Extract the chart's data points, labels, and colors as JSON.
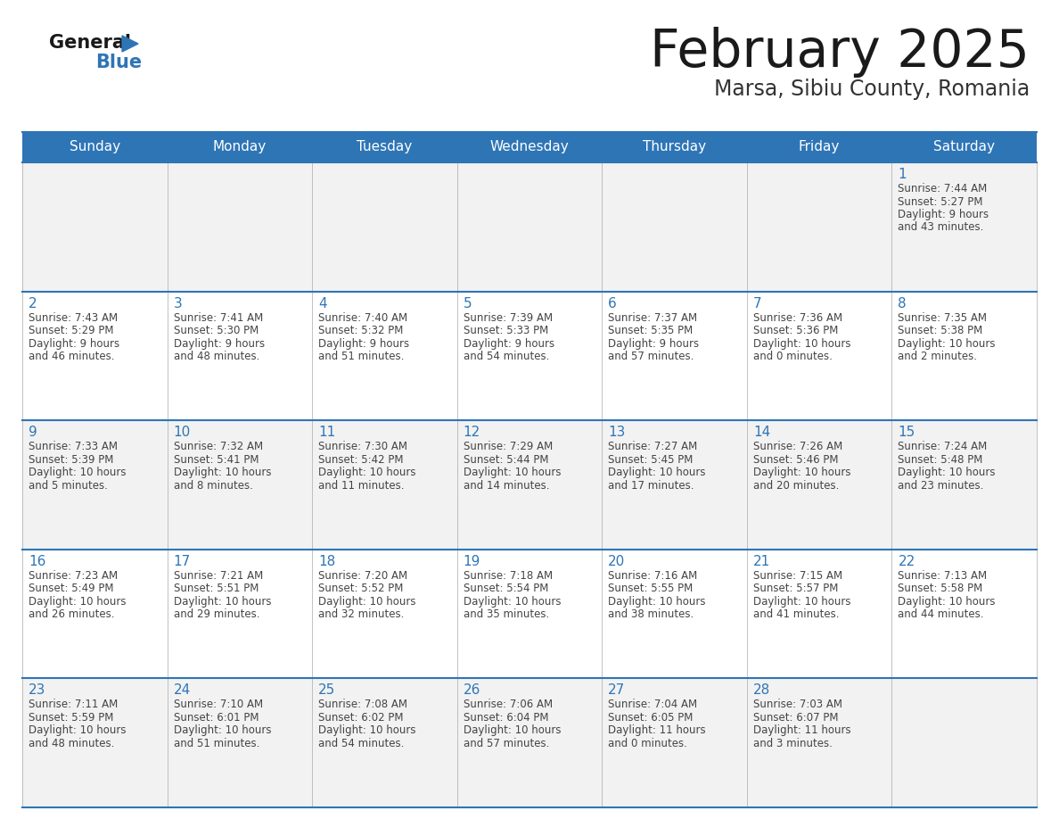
{
  "title": "February 2025",
  "subtitle": "Marsa, Sibiu County, Romania",
  "header_color": "#2E75B6",
  "header_text_color": "#FFFFFF",
  "cell_bg_odd": "#F2F2F2",
  "cell_bg_even": "#FFFFFF",
  "day_number_color": "#2E75B6",
  "info_text_color": "#444444",
  "border_color": "#2E75B6",
  "grid_line_color": "#AAAAAA",
  "days_of_week": [
    "Sunday",
    "Monday",
    "Tuesday",
    "Wednesday",
    "Thursday",
    "Friday",
    "Saturday"
  ],
  "calendar_data": [
    [
      null,
      null,
      null,
      null,
      null,
      null,
      {
        "day": 1,
        "sunrise": "7:44 AM",
        "sunset": "5:27 PM",
        "daylight_h": "9 hours",
        "daylight_m": "and 43 minutes."
      }
    ],
    [
      {
        "day": 2,
        "sunrise": "7:43 AM",
        "sunset": "5:29 PM",
        "daylight_h": "9 hours",
        "daylight_m": "and 46 minutes."
      },
      {
        "day": 3,
        "sunrise": "7:41 AM",
        "sunset": "5:30 PM",
        "daylight_h": "9 hours",
        "daylight_m": "and 48 minutes."
      },
      {
        "day": 4,
        "sunrise": "7:40 AM",
        "sunset": "5:32 PM",
        "daylight_h": "9 hours",
        "daylight_m": "and 51 minutes."
      },
      {
        "day": 5,
        "sunrise": "7:39 AM",
        "sunset": "5:33 PM",
        "daylight_h": "9 hours",
        "daylight_m": "and 54 minutes."
      },
      {
        "day": 6,
        "sunrise": "7:37 AM",
        "sunset": "5:35 PM",
        "daylight_h": "9 hours",
        "daylight_m": "and 57 minutes."
      },
      {
        "day": 7,
        "sunrise": "7:36 AM",
        "sunset": "5:36 PM",
        "daylight_h": "10 hours",
        "daylight_m": "and 0 minutes."
      },
      {
        "day": 8,
        "sunrise": "7:35 AM",
        "sunset": "5:38 PM",
        "daylight_h": "10 hours",
        "daylight_m": "and 2 minutes."
      }
    ],
    [
      {
        "day": 9,
        "sunrise": "7:33 AM",
        "sunset": "5:39 PM",
        "daylight_h": "10 hours",
        "daylight_m": "and 5 minutes."
      },
      {
        "day": 10,
        "sunrise": "7:32 AM",
        "sunset": "5:41 PM",
        "daylight_h": "10 hours",
        "daylight_m": "and 8 minutes."
      },
      {
        "day": 11,
        "sunrise": "7:30 AM",
        "sunset": "5:42 PM",
        "daylight_h": "10 hours",
        "daylight_m": "and 11 minutes."
      },
      {
        "day": 12,
        "sunrise": "7:29 AM",
        "sunset": "5:44 PM",
        "daylight_h": "10 hours",
        "daylight_m": "and 14 minutes."
      },
      {
        "day": 13,
        "sunrise": "7:27 AM",
        "sunset": "5:45 PM",
        "daylight_h": "10 hours",
        "daylight_m": "and 17 minutes."
      },
      {
        "day": 14,
        "sunrise": "7:26 AM",
        "sunset": "5:46 PM",
        "daylight_h": "10 hours",
        "daylight_m": "and 20 minutes."
      },
      {
        "day": 15,
        "sunrise": "7:24 AM",
        "sunset": "5:48 PM",
        "daylight_h": "10 hours",
        "daylight_m": "and 23 minutes."
      }
    ],
    [
      {
        "day": 16,
        "sunrise": "7:23 AM",
        "sunset": "5:49 PM",
        "daylight_h": "10 hours",
        "daylight_m": "and 26 minutes."
      },
      {
        "day": 17,
        "sunrise": "7:21 AM",
        "sunset": "5:51 PM",
        "daylight_h": "10 hours",
        "daylight_m": "and 29 minutes."
      },
      {
        "day": 18,
        "sunrise": "7:20 AM",
        "sunset": "5:52 PM",
        "daylight_h": "10 hours",
        "daylight_m": "and 32 minutes."
      },
      {
        "day": 19,
        "sunrise": "7:18 AM",
        "sunset": "5:54 PM",
        "daylight_h": "10 hours",
        "daylight_m": "and 35 minutes."
      },
      {
        "day": 20,
        "sunrise": "7:16 AM",
        "sunset": "5:55 PM",
        "daylight_h": "10 hours",
        "daylight_m": "and 38 minutes."
      },
      {
        "day": 21,
        "sunrise": "7:15 AM",
        "sunset": "5:57 PM",
        "daylight_h": "10 hours",
        "daylight_m": "and 41 minutes."
      },
      {
        "day": 22,
        "sunrise": "7:13 AM",
        "sunset": "5:58 PM",
        "daylight_h": "10 hours",
        "daylight_m": "and 44 minutes."
      }
    ],
    [
      {
        "day": 23,
        "sunrise": "7:11 AM",
        "sunset": "5:59 PM",
        "daylight_h": "10 hours",
        "daylight_m": "and 48 minutes."
      },
      {
        "day": 24,
        "sunrise": "7:10 AM",
        "sunset": "6:01 PM",
        "daylight_h": "10 hours",
        "daylight_m": "and 51 minutes."
      },
      {
        "day": 25,
        "sunrise": "7:08 AM",
        "sunset": "6:02 PM",
        "daylight_h": "10 hours",
        "daylight_m": "and 54 minutes."
      },
      {
        "day": 26,
        "sunrise": "7:06 AM",
        "sunset": "6:04 PM",
        "daylight_h": "10 hours",
        "daylight_m": "and 57 minutes."
      },
      {
        "day": 27,
        "sunrise": "7:04 AM",
        "sunset": "6:05 PM",
        "daylight_h": "11 hours",
        "daylight_m": "and 0 minutes."
      },
      {
        "day": 28,
        "sunrise": "7:03 AM",
        "sunset": "6:07 PM",
        "daylight_h": "11 hours",
        "daylight_m": "and 3 minutes."
      },
      null
    ]
  ]
}
